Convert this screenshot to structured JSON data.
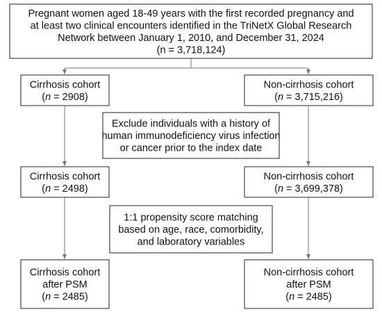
{
  "top": {
    "lines": [
      "Pregnant women aged 18-49 years with the first recorded pregnancy and",
      "at least two clinical encounters identified in the TriNetX Global Research",
      "Network between January 1, 2010, and December 31, 2024",
      "(n = 3,718,124)"
    ]
  },
  "nodes": [
    {
      "lines": [
        "Cirrhosis cohort"
      ],
      "count": {
        "open": "(",
        "var": "n",
        "value": " = 2908)"
      }
    },
    {
      "lines": [
        "Non-cirrhosis cohort"
      ],
      "count": {
        "open": "(",
        "var": "n",
        "value": " = 3,715,216)"
      }
    },
    {
      "lines": [
        "Exclude individuals with a history of",
        "human immunodeficiency virus infection",
        "or cancer prior to the index date"
      ]
    },
    {
      "lines": [
        "Cirrhosis cohort"
      ],
      "count": {
        "open": "(",
        "var": "n",
        "value": " = 2498)"
      }
    },
    {
      "lines": [
        "Non-cirrhosis cohort"
      ],
      "count": {
        "open": "(",
        "var": "n",
        "value": " = 3,699,378)"
      }
    },
    {
      "lines": [
        "1:1 propensity score matching",
        "based on age, race, comorbidity,",
        "and laboratory variables"
      ]
    },
    {
      "lines": [
        "Cirrhosis cohort",
        "after PSM"
      ],
      "count": {
        "open": "(",
        "var": "n",
        "value": " = 2485)"
      }
    },
    {
      "lines": [
        "Non-cirrhosis cohort",
        "after PSM"
      ],
      "count": {
        "open": "(",
        "var": "n",
        "value": " = 2485)"
      }
    }
  ]
}
